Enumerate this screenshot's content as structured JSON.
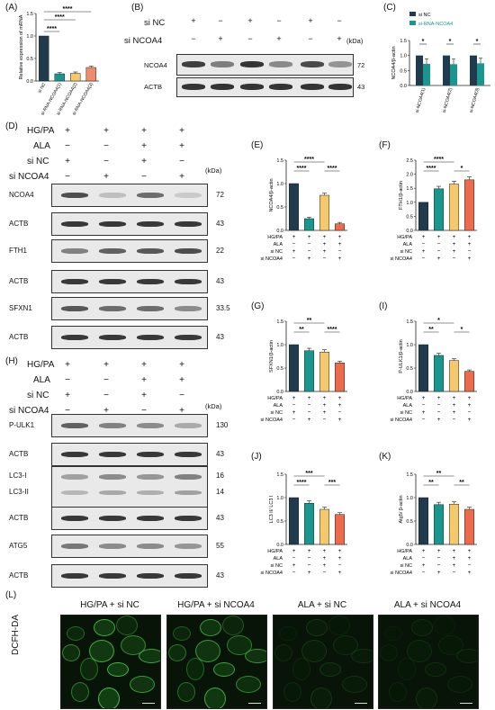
{
  "panels": {
    "A": {
      "label": "(A)"
    },
    "B": {
      "label": "(B)"
    },
    "C": {
      "label": "(C)"
    },
    "D": {
      "label": "(D)"
    },
    "E": {
      "label": "(E)"
    },
    "F": {
      "label": "(F)"
    },
    "G": {
      "label": "(G)"
    },
    "H": {
      "label": "(H)"
    },
    "I": {
      "label": "(I)"
    },
    "J": {
      "label": "(J)"
    },
    "K": {
      "label": "(K)"
    },
    "L": {
      "label": "(L)"
    }
  },
  "kda": "(kDa)",
  "blotB": {
    "row1": "si NC",
    "row2": "si NCOA4",
    "row1_signs": [
      "+",
      "−",
      "+",
      "−",
      "+",
      "−"
    ],
    "row2_signs": [
      "−",
      "+",
      "−",
      "+",
      "−",
      "+"
    ],
    "bands": [
      {
        "name": "NCOA4",
        "kda": "72"
      },
      {
        "name": "ACTB",
        "kda": "43"
      }
    ]
  },
  "conditions": {
    "rows": [
      "HG/PA",
      "ALA",
      "si NC",
      "si NCOA4"
    ],
    "signs": [
      [
        "+",
        "+",
        "+",
        "+"
      ],
      [
        "−",
        "−",
        "+",
        "+"
      ],
      [
        "+",
        "−",
        "+",
        "−"
      ],
      [
        "−",
        "+",
        "−",
        "+"
      ]
    ]
  },
  "blotD": [
    {
      "name": "NCOA4",
      "kda": "72"
    },
    {
      "name": "ACTB",
      "kda": "43"
    },
    {
      "name": "FTH1",
      "kda": "22"
    },
    {
      "name": "ACTB",
      "kda": "43"
    },
    {
      "name": "SFXN1",
      "kda": "33.5"
    },
    {
      "name": "ACTB",
      "kda": "43"
    }
  ],
  "blotH": [
    {
      "name": "P-ULK1",
      "kda": "130"
    },
    {
      "name": "ACTB",
      "kda": "43"
    },
    {
      "name": "LC3-I",
      "kda": "16",
      "name2": "LC3-II",
      "kda2": "14"
    },
    {
      "name": "ACTB",
      "kda": "43"
    },
    {
      "name": "ATG5",
      "kda": "55"
    },
    {
      "name": "ACTB",
      "kda": "43"
    }
  ],
  "micro": {
    "side": "DCFH-DA",
    "titles": [
      "HG/PA + si NC",
      "HG/PA + si NCOA4",
      "ALA + si NC",
      "ALA + si NCOA4"
    ]
  },
  "colors": {
    "navy": "#1f3b4d",
    "teal": "#19978f",
    "yellow": "#f5c86b",
    "orange": "#ed6b4a",
    "coral": "#f08c6b"
  },
  "chart_data": [
    {
      "id": "A",
      "type": "bar",
      "ylabel": "Relative expression of mRNA",
      "ylim": [
        0,
        1.5
      ],
      "yticks": [
        "0.0",
        "0.5",
        "1.0",
        "1.5"
      ],
      "categories": [
        "si NC",
        "si-RNA-NCOA4(1)",
        "si-RNA-NCOA4(2)",
        "si-RNA-NCOA4(3)"
      ],
      "values": [
        1.0,
        0.16,
        0.17,
        0.3
      ],
      "sig": [
        "****",
        "****",
        "****"
      ]
    },
    {
      "id": "C",
      "type": "bar",
      "ylabel": "NCOA4/β-actin",
      "ylim": [
        0,
        1.5
      ],
      "yticks": [
        "0.0",
        "0.5",
        "1.0",
        "1.5"
      ],
      "legend": [
        "si NC",
        "si-RNA-NCOA4"
      ],
      "categories": [
        "si-NCOA4(1)",
        "si-NCOA4(2)",
        "si-NCOA4(3)"
      ],
      "series": [
        {
          "name": "si NC",
          "values": [
            1.0,
            1.0,
            1.0
          ]
        },
        {
          "name": "si-RNA-NCOA4",
          "values": [
            0.72,
            0.71,
            0.74
          ]
        }
      ],
      "sig": [
        "*",
        "*",
        "*"
      ]
    },
    {
      "id": "E",
      "type": "bar",
      "ylabel": "NCOA4/β-actin",
      "ylim": [
        0,
        1.5
      ],
      "yticks": [
        "0.0",
        "0.5",
        "1.0",
        "1.5"
      ],
      "values": [
        1.0,
        0.25,
        0.75,
        0.14
      ],
      "sig": [
        "****",
        "****",
        "****"
      ]
    },
    {
      "id": "F",
      "type": "bar",
      "ylabel": "FTH1/β-actin",
      "ylim": [
        0,
        2.5
      ],
      "yticks": [
        "0.0",
        "0.5",
        "1.0",
        "1.5",
        "2.0",
        "2.5"
      ],
      "values": [
        1.0,
        1.48,
        1.65,
        1.8
      ],
      "sig": [
        "****",
        "****",
        "*"
      ]
    },
    {
      "id": "G",
      "type": "bar",
      "ylabel": "SFXN1/β-actin",
      "ylim": [
        0,
        1.5
      ],
      "yticks": [
        "0.0",
        "0.5",
        "1.0",
        "1.5"
      ],
      "values": [
        1.0,
        0.87,
        0.84,
        0.61
      ],
      "sig": [
        "**",
        "**",
        "****"
      ]
    },
    {
      "id": "I",
      "type": "bar",
      "ylabel": "P-ULK1/β-actin",
      "ylim": [
        0,
        1.5
      ],
      "yticks": [
        "0.0",
        "0.5",
        "1.0",
        "1.5"
      ],
      "values": [
        1.0,
        0.77,
        0.66,
        0.43
      ],
      "sig": [
        "**",
        "*",
        "*"
      ]
    },
    {
      "id": "J",
      "type": "bar",
      "ylabel": "LC3 II/ LC3 I",
      "ylim": [
        0,
        1.5
      ],
      "yticks": [
        "0.0",
        "0.5",
        "1.0",
        "1.5"
      ],
      "values": [
        1.0,
        0.88,
        0.75,
        0.64
      ],
      "sig": [
        "****",
        "***",
        "***"
      ]
    },
    {
      "id": "K",
      "type": "bar",
      "ylabel": "Atg5/ β-actin",
      "ylim": [
        0,
        1.5
      ],
      "yticks": [
        "0.0",
        "0.5",
        "1.0",
        "1.5"
      ],
      "values": [
        1.0,
        0.85,
        0.86,
        0.75
      ],
      "sig": [
        "**",
        "**",
        "**"
      ]
    }
  ]
}
